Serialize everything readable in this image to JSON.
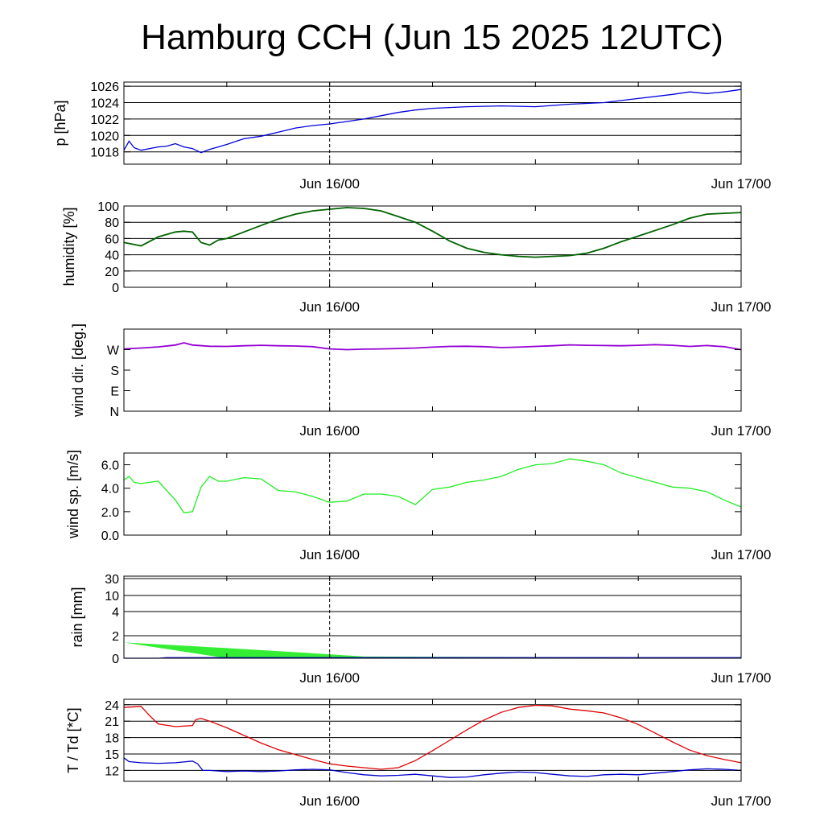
{
  "title": "Hamburg CCH (Jun 15 2025 12UTC)",
  "colors": {
    "pressure": "#0000dd",
    "humidity": "#006400",
    "wind_dir": "#9400d3",
    "wind_speed": "#22ee22",
    "rain_fill": "#33ee33",
    "rain_line": "#0000cc",
    "temperature": "#e00000",
    "dewpoint": "#0000cc"
  },
  "chart_data": [
    {
      "id": "pressure",
      "type": "line",
      "ylabel": "p [hPa]",
      "ylim": [
        1016.5,
        1026.5
      ],
      "yticks": [
        1018,
        1020,
        1022,
        1024,
        1026
      ],
      "ytick_labels": [
        "1018",
        "1020",
        "1022",
        "1024",
        "1026"
      ],
      "grid": true,
      "xlim": [
        0,
        36
      ],
      "xtick_labels": [
        {
          "x": 12,
          "label": "Jun 16/00"
        },
        {
          "x": 36,
          "label": "Jun 17/00"
        }
      ],
      "vline_x": 12,
      "series": [
        {
          "color_key": "pressure",
          "x": [
            0,
            0.3,
            0.6,
            1,
            1.5,
            2,
            2.5,
            3,
            3.5,
            4,
            4.5,
            5,
            5.5,
            6,
            7,
            8,
            9,
            10,
            11,
            12,
            13,
            14,
            15,
            16,
            17,
            18,
            20,
            22,
            24,
            26,
            28,
            30,
            32,
            33,
            34,
            35,
            36
          ],
          "y": [
            1018.2,
            1019.3,
            1018.5,
            1018.2,
            1018.4,
            1018.6,
            1018.7,
            1019.0,
            1018.6,
            1018.4,
            1017.9,
            1018.3,
            1018.6,
            1018.9,
            1019.6,
            1019.9,
            1020.4,
            1020.9,
            1021.2,
            1021.4,
            1021.7,
            1022.0,
            1022.4,
            1022.8,
            1023.1,
            1023.3,
            1023.5,
            1023.6,
            1023.5,
            1023.8,
            1024.0,
            1024.5,
            1025.0,
            1025.3,
            1025.1,
            1025.3,
            1025.6
          ]
        }
      ]
    },
    {
      "id": "humidity",
      "type": "line",
      "ylabel": "humidity [%]",
      "ylim": [
        0,
        100
      ],
      "yticks": [
        0,
        20,
        40,
        60,
        80,
        100
      ],
      "ytick_labels": [
        "0",
        "20",
        "40",
        "60",
        "80",
        "100"
      ],
      "grid": true,
      "xlim": [
        0,
        36
      ],
      "xtick_labels": [
        {
          "x": 12,
          "label": "Jun 16/00"
        },
        {
          "x": 36,
          "label": "Jun 17/00"
        }
      ],
      "vline_x": 12,
      "series": [
        {
          "color_key": "humidity",
          "x": [
            0,
            1,
            2,
            3,
            3.5,
            4,
            4.5,
            5,
            5.5,
            6,
            7,
            8,
            9,
            10,
            11,
            12,
            13,
            14,
            15,
            16,
            17,
            18,
            19,
            20,
            21,
            22,
            23,
            24,
            25,
            26,
            27,
            28,
            29,
            30,
            31,
            32,
            33,
            34,
            35,
            36
          ],
          "y": [
            55,
            51,
            62,
            68,
            69,
            68,
            55,
            52,
            58,
            60,
            68,
            76,
            84,
            90,
            94,
            96,
            98,
            97,
            94,
            87,
            80,
            69,
            57,
            48,
            43,
            40,
            38,
            37,
            38,
            39,
            42,
            48,
            56,
            63,
            70,
            77,
            85,
            90,
            91,
            92
          ]
        }
      ]
    },
    {
      "id": "wind_direction",
      "type": "line",
      "ylabel": "wind dir. [deg.]",
      "ylim": [
        0,
        360
      ],
      "yticks": [
        0,
        90,
        180,
        270
      ],
      "ytick_labels": [
        "N",
        "E",
        "S",
        "W"
      ],
      "grid": false,
      "xlim": [
        0,
        36
      ],
      "xtick_labels": [
        {
          "x": 12,
          "label": "Jun 16/00"
        },
        {
          "x": 36,
          "label": "Jun 17/00"
        }
      ],
      "vline_x": 12,
      "series": [
        {
          "color_key": "wind_dir",
          "x": [
            0,
            1,
            2,
            3,
            3.5,
            4,
            5,
            6,
            7,
            8,
            9,
            10,
            11,
            12,
            13,
            14,
            15,
            16,
            17,
            18,
            19,
            20,
            21,
            22,
            23,
            24,
            25,
            26,
            27,
            28,
            29,
            30,
            31,
            32,
            33,
            34,
            35,
            36
          ],
          "y": [
            273,
            277,
            282,
            290,
            300,
            290,
            285,
            284,
            287,
            289,
            287,
            286,
            283,
            273,
            270,
            272,
            273,
            275,
            277,
            281,
            284,
            285,
            283,
            279,
            281,
            284,
            287,
            291,
            289,
            288,
            287,
            289,
            292,
            289,
            284,
            288,
            283,
            270
          ]
        }
      ]
    },
    {
      "id": "wind_speed",
      "type": "line",
      "ylabel": "wind sp. [m/s]",
      "ylim": [
        0,
        7
      ],
      "yticks": [
        0,
        2,
        4,
        6
      ],
      "ytick_labels": [
        "0.0",
        "2.0",
        "4.0",
        "6.0"
      ],
      "grid": false,
      "xlim": [
        0,
        36
      ],
      "xtick_labels": [
        {
          "x": 12,
          "label": "Jun 16/00"
        },
        {
          "x": 36,
          "label": "Jun 17/00"
        }
      ],
      "vline_x": 12,
      "series": [
        {
          "color_key": "wind_speed",
          "x": [
            0,
            0.3,
            0.6,
            1,
            2,
            3,
            3.5,
            4,
            4.5,
            5,
            5.5,
            6,
            7,
            8,
            9,
            10,
            11,
            12,
            13,
            14,
            15,
            16,
            17,
            18,
            19,
            20,
            21,
            22,
            23,
            24,
            25,
            26,
            27,
            28,
            29,
            30,
            31,
            32,
            33,
            34,
            35,
            36
          ],
          "y": [
            4.7,
            5.0,
            4.5,
            4.4,
            4.6,
            3.0,
            1.9,
            2.0,
            4.1,
            5.0,
            4.6,
            4.6,
            4.9,
            4.8,
            3.8,
            3.7,
            3.3,
            2.8,
            2.9,
            3.5,
            3.5,
            3.3,
            2.6,
            3.9,
            4.1,
            4.5,
            4.7,
            5.0,
            5.6,
            6.0,
            6.1,
            6.5,
            6.3,
            6.0,
            5.3,
            4.9,
            4.5,
            4.1,
            4.0,
            3.7,
            3.0,
            2.4
          ]
        }
      ]
    },
    {
      "id": "rain",
      "type": "area",
      "ylabel": "rain [mm]",
      "yscale": "nonlinear",
      "yticks": [
        0,
        2,
        4,
        10,
        30
      ],
      "ytick_labels": [
        "0",
        "2",
        "4",
        "10",
        "30"
      ],
      "grid": true,
      "xlim": [
        0,
        36
      ],
      "xtick_labels": [
        {
          "x": 12,
          "label": "Jun 16/00"
        },
        {
          "x": 36,
          "label": "Jun 17/00"
        }
      ],
      "vline_x": 12,
      "series": [
        {
          "color_key": "rain_fill",
          "name": "",
          "x": [
            0,
            6,
            12,
            14,
            36
          ],
          "upper": [
            1.4,
            0.9,
            0.35,
            0.15,
            0.05
          ],
          "lower": [
            1.4,
            0,
            0,
            0,
            0
          ]
        },
        {
          "color_key": "rain_line",
          "name": "",
          "x": [
            0,
            2,
            2.5,
            36
          ],
          "y": [
            0,
            0,
            0.05,
            0.05
          ]
        }
      ]
    },
    {
      "id": "temperature",
      "type": "line",
      "ylabel": "T / Td [*C]",
      "ylim": [
        10,
        25
      ],
      "yticks": [
        12,
        15,
        18,
        21,
        24
      ],
      "ytick_labels": [
        "12",
        "15",
        "18",
        "21",
        "24"
      ],
      "grid": true,
      "xlim": [
        0,
        36
      ],
      "xtick_labels": [
        {
          "x": 12,
          "label": "Jun 16/00"
        },
        {
          "x": 36,
          "label": "Jun 17/00"
        }
      ],
      "vline_x": 12,
      "series": [
        {
          "color_key": "temperature",
          "x": [
            0,
            1,
            1.5,
            2,
            3,
            4,
            4.2,
            4.5,
            5,
            6,
            7,
            8,
            9,
            10,
            11,
            12,
            13,
            14,
            15,
            16,
            17,
            18,
            19,
            20,
            21,
            22,
            23,
            24,
            25,
            26,
            27,
            28,
            29,
            30,
            31,
            32,
            33,
            34,
            35,
            36
          ],
          "y": [
            23.5,
            23.7,
            22.0,
            20.5,
            20.0,
            20.2,
            21.3,
            21.5,
            21.0,
            19.8,
            18.4,
            17.0,
            15.8,
            14.9,
            14.0,
            13.2,
            12.8,
            12.5,
            12.2,
            12.5,
            13.8,
            15.6,
            17.5,
            19.4,
            21.2,
            22.6,
            23.5,
            23.9,
            23.8,
            23.2,
            22.9,
            22.5,
            21.6,
            20.4,
            18.8,
            17.2,
            15.7,
            14.7,
            14.0,
            13.4
          ]
        },
        {
          "color_key": "dewpoint",
          "x": [
            0,
            0.3,
            1,
            2,
            3,
            4,
            4.3,
            4.6,
            5,
            6,
            7,
            8,
            9,
            10,
            11,
            12,
            13,
            14,
            15,
            16,
            17,
            18,
            19,
            20,
            21,
            22,
            23,
            24,
            25,
            26,
            27,
            28,
            29,
            30,
            31,
            32,
            33,
            34,
            35,
            36
          ],
          "y": [
            14.3,
            13.6,
            13.4,
            13.3,
            13.4,
            13.7,
            13.2,
            12.0,
            12.0,
            11.8,
            11.9,
            11.8,
            11.9,
            12.1,
            12.2,
            12.1,
            11.6,
            11.2,
            11.0,
            11.1,
            11.3,
            11.0,
            10.7,
            10.8,
            11.2,
            11.5,
            11.7,
            11.6,
            11.3,
            11.0,
            10.9,
            11.2,
            11.3,
            11.2,
            11.5,
            11.8,
            12.1,
            12.3,
            12.2,
            12.0
          ]
        }
      ]
    }
  ]
}
